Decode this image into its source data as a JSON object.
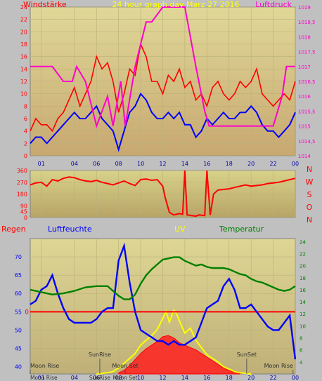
{
  "chart_data": [
    {
      "type": "line",
      "title": "24 hour graph day   Marz 27 2016",
      "left_axis_label": "Windstärke",
      "right_axis_label": "Luftdruck",
      "left_ylim": [
        0,
        24
      ],
      "left_ticks": [
        0,
        2,
        4,
        6,
        8,
        10,
        12,
        14,
        16,
        18,
        20,
        22,
        24
      ],
      "right_ylim": [
        1014,
        1019
      ],
      "right_ticks": [
        "1014",
        "1014,5",
        "1015",
        "1015,5",
        "1016",
        "1016,5",
        "1017",
        "1017,5",
        "1018",
        "1018,5",
        "1019"
      ],
      "x_ticks": [
        "01",
        "04",
        "06",
        "08",
        "10",
        "12",
        "14",
        "16",
        "18",
        "20",
        "22",
        "00"
      ],
      "x_tick_hours": [
        1,
        4,
        6,
        8,
        10,
        12,
        14,
        16,
        18,
        20,
        22,
        24
      ],
      "xlim": [
        0,
        24
      ],
      "colors": {
        "gust": "#ff0000",
        "wind": "#0000ff",
        "pressure": "#ff00cc",
        "left_axis": "#ff0000",
        "right_axis": "#ff00cc"
      },
      "series": [
        {
          "id": "gust",
          "x": [
            0,
            0.5,
            1,
            1.5,
            2,
            2.5,
            3,
            3.5,
            4,
            4.5,
            5,
            5.5,
            6,
            6.5,
            7,
            7.5,
            8,
            8.5,
            9,
            9.5,
            10,
            10.5,
            11,
            11.5,
            12,
            12.5,
            13,
            13.5,
            14,
            14.5,
            15,
            15.5,
            16,
            16.5,
            17,
            17.5,
            18,
            18.5,
            19,
            19.5,
            20,
            20.5,
            21,
            21.5,
            22,
            22.5,
            23,
            23.5,
            24
          ],
          "values": [
            4,
            6,
            5,
            5,
            4,
            6,
            7,
            9,
            11,
            8,
            10,
            12,
            16,
            14,
            15,
            12,
            7,
            10,
            14,
            13,
            18,
            16,
            12,
            12,
            10,
            13,
            12,
            14,
            11,
            12,
            9,
            10,
            8,
            11,
            12,
            10,
            9,
            10,
            12,
            11,
            12,
            14,
            10,
            9,
            8,
            9,
            10,
            9,
            12
          ]
        },
        {
          "id": "wind",
          "x": [
            0,
            0.5,
            1,
            1.5,
            2,
            2.5,
            3,
            3.5,
            4,
            4.5,
            5,
            5.5,
            6,
            6.5,
            7,
            7.5,
            8,
            8.5,
            9,
            9.5,
            10,
            10.5,
            11,
            11.5,
            12,
            12.5,
            13,
            13.5,
            14,
            14.5,
            15,
            15.5,
            16,
            16.5,
            17,
            17.5,
            18,
            18.5,
            19,
            19.5,
            20,
            20.5,
            21,
            21.5,
            22,
            22.5,
            23,
            23.5,
            24
          ],
          "values": [
            2,
            3,
            3,
            2,
            3,
            4,
            5,
            6,
            7,
            6,
            6,
            7,
            8,
            6,
            5,
            4,
            1,
            4,
            7,
            8,
            10,
            9,
            7,
            6,
            6,
            7,
            6,
            7,
            5,
            5,
            3,
            4,
            6,
            5,
            6,
            7,
            6,
            6,
            7,
            7,
            8,
            7,
            5,
            4,
            4,
            3,
            4,
            5,
            7
          ]
        },
        {
          "id": "pressure",
          "x": [
            0,
            2,
            3,
            3.8,
            4.2,
            5,
            6,
            7,
            7.5,
            8.2,
            8.6,
            9.5,
            10.5,
            11,
            12,
            14,
            15,
            15.8,
            16.2,
            17,
            18,
            19,
            20,
            21,
            22,
            22.8,
            23.2,
            24
          ],
          "values": [
            1017,
            1017,
            1016.5,
            1016.5,
            1017,
            1016.5,
            1015,
            1016,
            1015,
            1016.5,
            1015,
            1017,
            1018.5,
            1018.5,
            1019,
            1019,
            1017,
            1015.5,
            1015,
            1015,
            1015,
            1015,
            1015,
            1015,
            1015,
            1016,
            1017,
            1017
          ]
        }
      ]
    },
    {
      "type": "line",
      "title": "",
      "right_axis_label": [
        "N",
        "W",
        "S",
        "O",
        "N"
      ],
      "ylim": [
        0,
        360
      ],
      "ticks": [
        0,
        45,
        90,
        180,
        270,
        360
      ],
      "tick_labels": [
        "0",
        "45",
        "90",
        "180",
        "270",
        "360"
      ],
      "x_ticks": [],
      "xlim": [
        0,
        24
      ],
      "colors": {
        "direction": "#ff0000"
      },
      "series": [
        {
          "id": "direction",
          "x": [
            0,
            0.5,
            1,
            1.5,
            2,
            2.5,
            3,
            3.5,
            4,
            4.5,
            5,
            5.5,
            6,
            6.5,
            7,
            7.5,
            8,
            8.5,
            9,
            9.5,
            10,
            10.5,
            11,
            11.5,
            12,
            12.2,
            12.6,
            13,
            13.5,
            13.8,
            14,
            14.2,
            14.6,
            15,
            15.3,
            15.8,
            16,
            16.3,
            16.6,
            17,
            17.5,
            18,
            18.5,
            19,
            19.5,
            20,
            20.5,
            21,
            21.5,
            22,
            22.5,
            23,
            23.5,
            24
          ],
          "values": [
            250,
            265,
            270,
            240,
            290,
            280,
            300,
            310,
            305,
            290,
            280,
            275,
            285,
            270,
            260,
            250,
            265,
            280,
            260,
            245,
            290,
            295,
            285,
            290,
            240,
            160,
            40,
            20,
            30,
            25,
            360,
            20,
            15,
            10,
            20,
            15,
            360,
            20,
            180,
            210,
            215,
            220,
            230,
            240,
            250,
            240,
            245,
            250,
            260,
            265,
            270,
            280,
            290,
            300
          ]
        }
      ]
    },
    {
      "type": "line",
      "title": "",
      "labels": {
        "rain": "Regen",
        "humidity": "Luftfeuchte",
        "uv": "UV",
        "temperature": "Temperatur"
      },
      "left_ylim": [
        38,
        75
      ],
      "left_ticks": [
        40,
        45,
        50,
        55,
        60,
        65,
        70
      ],
      "right_ylim": [
        2,
        24.5
      ],
      "right_ticks": [
        4,
        6,
        8,
        10,
        12,
        14,
        16,
        18,
        20,
        22,
        24
      ],
      "rain_tick": "0",
      "rain_value": 0,
      "x_ticks": [
        "01",
        "04",
        "06",
        "08",
        "10",
        "12",
        "14",
        "16",
        "18",
        "20",
        "22",
        "00"
      ],
      "x_tick_hours": [
        1,
        4,
        6,
        8,
        10,
        12,
        14,
        16,
        18,
        20,
        22,
        24
      ],
      "xlim": [
        0,
        24
      ],
      "annotations": [
        {
          "text": "Moon Rise",
          "hour": 0.0
        },
        {
          "text": "SunRise",
          "hour": 6.3
        },
        {
          "text": "Moon Set",
          "hour": 8.6
        },
        {
          "text": "SunSet",
          "hour": 19.6
        },
        {
          "text": "Moon Rise",
          "hour": 23.8
        }
      ],
      "bottom_marker_labels": [
        "Moon Rise",
        "SunRise",
        "Moon Set"
      ],
      "colors": {
        "humidity": "#0000ff",
        "temperature": "#008000",
        "uv": "#ffff00",
        "solar": "#ff0000",
        "rain_line": "#ff0000",
        "left_axis": "#0000ff",
        "right_axis": "#008000"
      },
      "series": [
        {
          "id": "humidity",
          "x": [
            0,
            0.5,
            1,
            1.5,
            2,
            2.5,
            3,
            3.5,
            4,
            4.5,
            5,
            5.5,
            6,
            6.5,
            7,
            7.5,
            8,
            8.5,
            9,
            9.5,
            10,
            10.5,
            11,
            11.5,
            12,
            12.5,
            13,
            13.5,
            14,
            14.5,
            15,
            15.5,
            16,
            16.5,
            17,
            17.5,
            18,
            18.5,
            19,
            19.5,
            20,
            20.5,
            21,
            21.5,
            22,
            22.5,
            23,
            23.5,
            24
          ],
          "values": [
            57,
            58,
            61,
            62,
            65,
            60,
            56,
            53,
            52,
            52,
            52,
            52,
            53,
            55,
            56,
            56,
            69,
            73,
            63,
            55,
            50,
            49,
            48,
            47,
            47,
            46,
            47,
            46,
            46,
            47,
            48,
            52,
            56,
            57,
            58,
            62,
            64,
            61,
            56,
            56,
            57,
            55,
            53,
            51,
            50,
            50,
            52,
            54,
            42
          ]
        },
        {
          "id": "temperature",
          "x": [
            0,
            1,
            2,
            3,
            4,
            5,
            6,
            7,
            8,
            8.5,
            9,
            9.5,
            10,
            10.5,
            11,
            11.5,
            12,
            12.5,
            13,
            13.5,
            14,
            14.5,
            15,
            15.5,
            16,
            16.5,
            17,
            17.5,
            18,
            18.5,
            19,
            19.5,
            20,
            20.5,
            21,
            21.5,
            22,
            22.5,
            23,
            23.5,
            24
          ],
          "values": [
            16.0,
            15.6,
            15.2,
            15.4,
            15.8,
            16.4,
            16.6,
            16.6,
            15.0,
            14.4,
            14.4,
            15.2,
            17.0,
            18.4,
            19.4,
            20.2,
            21.0,
            21.2,
            21.4,
            21.4,
            20.8,
            20.4,
            20.0,
            20.2,
            19.8,
            19.6,
            19.6,
            19.6,
            19.4,
            19.0,
            18.6,
            18.4,
            17.8,
            17.4,
            17.2,
            16.8,
            16.4,
            16.0,
            15.8,
            16.0,
            16.6
          ]
        },
        {
          "id": "uv",
          "x": [
            6,
            7,
            7.5,
            8,
            8.5,
            9,
            9.5,
            10,
            10.5,
            11,
            11.5,
            12,
            12.3,
            12.6,
            13,
            13.3,
            13.6,
            14,
            14.5,
            15,
            15.5,
            16,
            16.5,
            17,
            17.5,
            18,
            18.5,
            19,
            20
          ],
          "values": [
            2,
            2.2,
            2.4,
            3,
            3.8,
            4.6,
            5.4,
            6.8,
            7.6,
            8.4,
            9.4,
            11.2,
            12.4,
            10.6,
            12.6,
            11.8,
            10.4,
            8.8,
            9.6,
            7.6,
            6.4,
            5.2,
            4.6,
            4.0,
            3.2,
            2.8,
            2.4,
            2.2,
            2
          ]
        },
        {
          "id": "solar",
          "x": [
            8,
            8.5,
            9,
            9.5,
            10,
            10.5,
            11,
            11.5,
            12,
            12.5,
            13,
            13.5,
            14,
            14.5,
            15,
            15.5,
            16,
            16.5,
            17,
            17.5,
            18,
            18.5,
            19
          ],
          "values": [
            2.2,
            2.6,
            3.4,
            4.4,
            5.4,
            6.2,
            6.8,
            7.4,
            8.2,
            8.4,
            8.0,
            7.2,
            6.8,
            6.4,
            6.0,
            5.4,
            4.8,
            4.2,
            3.6,
            3.0,
            2.6,
            2.3,
            2.1
          ]
        }
      ]
    }
  ]
}
